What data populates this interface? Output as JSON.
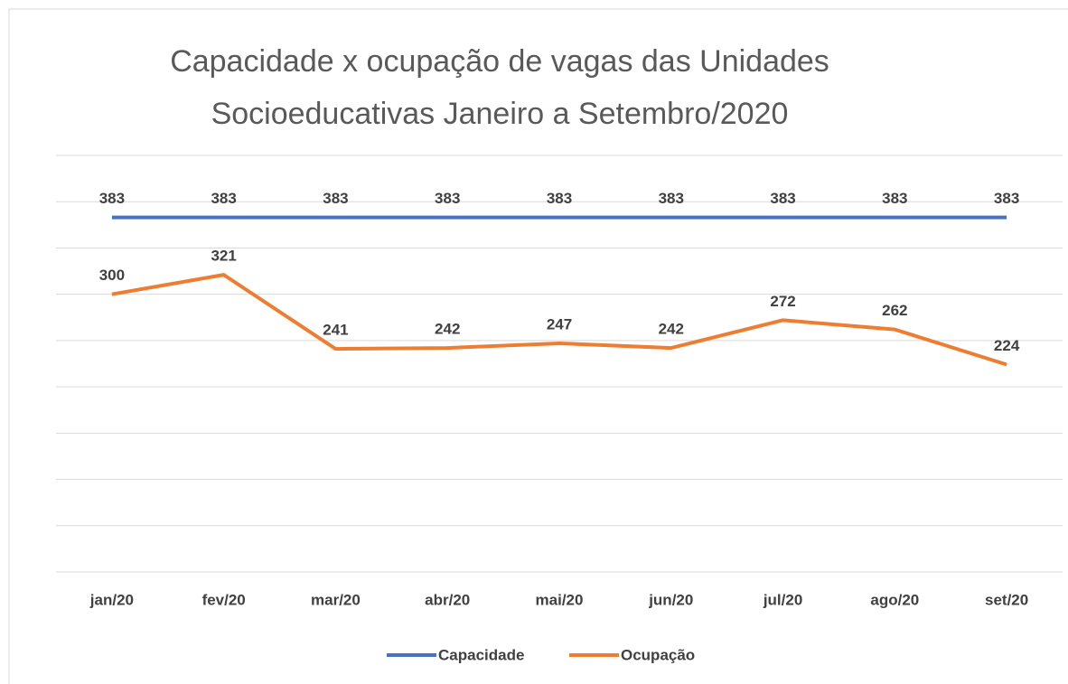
{
  "chart_data": {
    "type": "line",
    "title": [
      "Capacidade x ocupação de vagas das Unidades",
      "Socioeducativas Janeiro a Setembro/2020"
    ],
    "categories": [
      "jan/20",
      "fev/20",
      "mar/20",
      "abr/20",
      "mai/20",
      "jun/20",
      "jul/20",
      "ago/20",
      "set/20"
    ],
    "series": [
      {
        "name": "Capacidade",
        "color": "#4472c4",
        "values": [
          383,
          383,
          383,
          383,
          383,
          383,
          383,
          383,
          383
        ]
      },
      {
        "name": "Ocupação",
        "color": "#ed7d31",
        "values": [
          300,
          321,
          241,
          242,
          247,
          242,
          272,
          262,
          224
        ]
      }
    ],
    "ylim": [
      0,
      450
    ],
    "yticks": [
      0,
      50,
      100,
      150,
      200,
      250,
      300,
      350,
      400,
      450
    ],
    "grid": true,
    "legend": "bottom"
  }
}
